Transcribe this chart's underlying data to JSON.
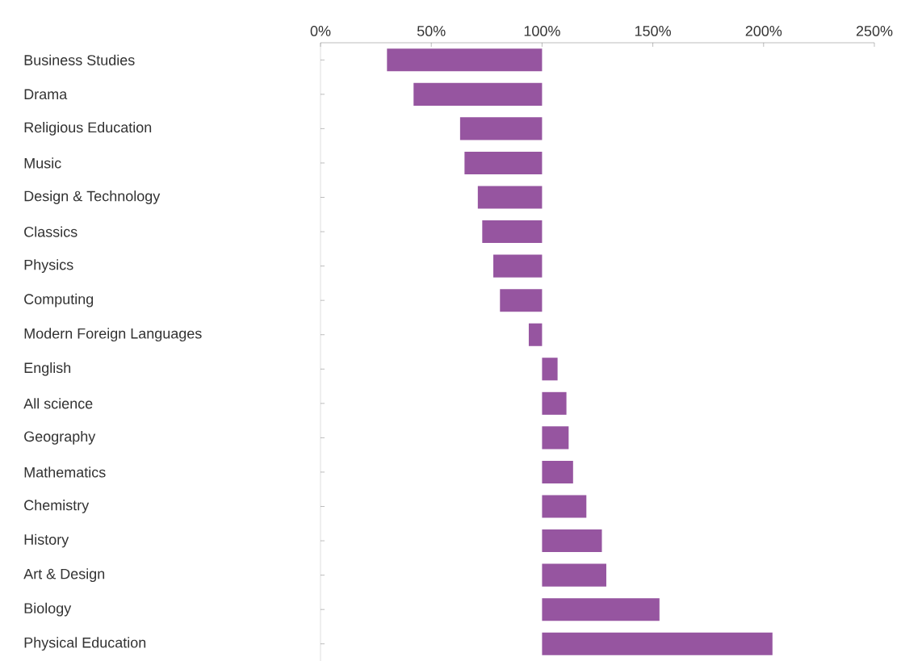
{
  "chart_data": {
    "type": "bar",
    "orientation": "horizontal",
    "categories": [
      "Business Studies",
      "Drama",
      "Religious Education",
      "Music",
      "Design & Technology",
      "Classics",
      "Physics",
      "Computing",
      "Modern Foreign Languages",
      "English",
      "All science",
      "Geography",
      "Mathematics",
      "Chemistry",
      "History",
      "Art & Design",
      "Biology",
      "Physical Education"
    ],
    "base": [
      100,
      100,
      100,
      100,
      100,
      100,
      100,
      100,
      100,
      100,
      100,
      100,
      100,
      100,
      100,
      100,
      100,
      100
    ],
    "values": [
      -70,
      -58,
      -37,
      -35,
      -29,
      -27,
      -22,
      -19,
      -6,
      7,
      11,
      12,
      14,
      20,
      27,
      29,
      53,
      104
    ],
    "color": "#9655a0",
    "xlim": [
      0,
      250
    ],
    "xticks": [
      {
        "value": 0,
        "label": "0%"
      },
      {
        "value": 50,
        "label": "50%"
      },
      {
        "value": 100,
        "label": "100%"
      },
      {
        "value": 150,
        "label": "150%"
      },
      {
        "value": 200,
        "label": "200%"
      },
      {
        "value": 250,
        "label": "250%"
      }
    ]
  }
}
